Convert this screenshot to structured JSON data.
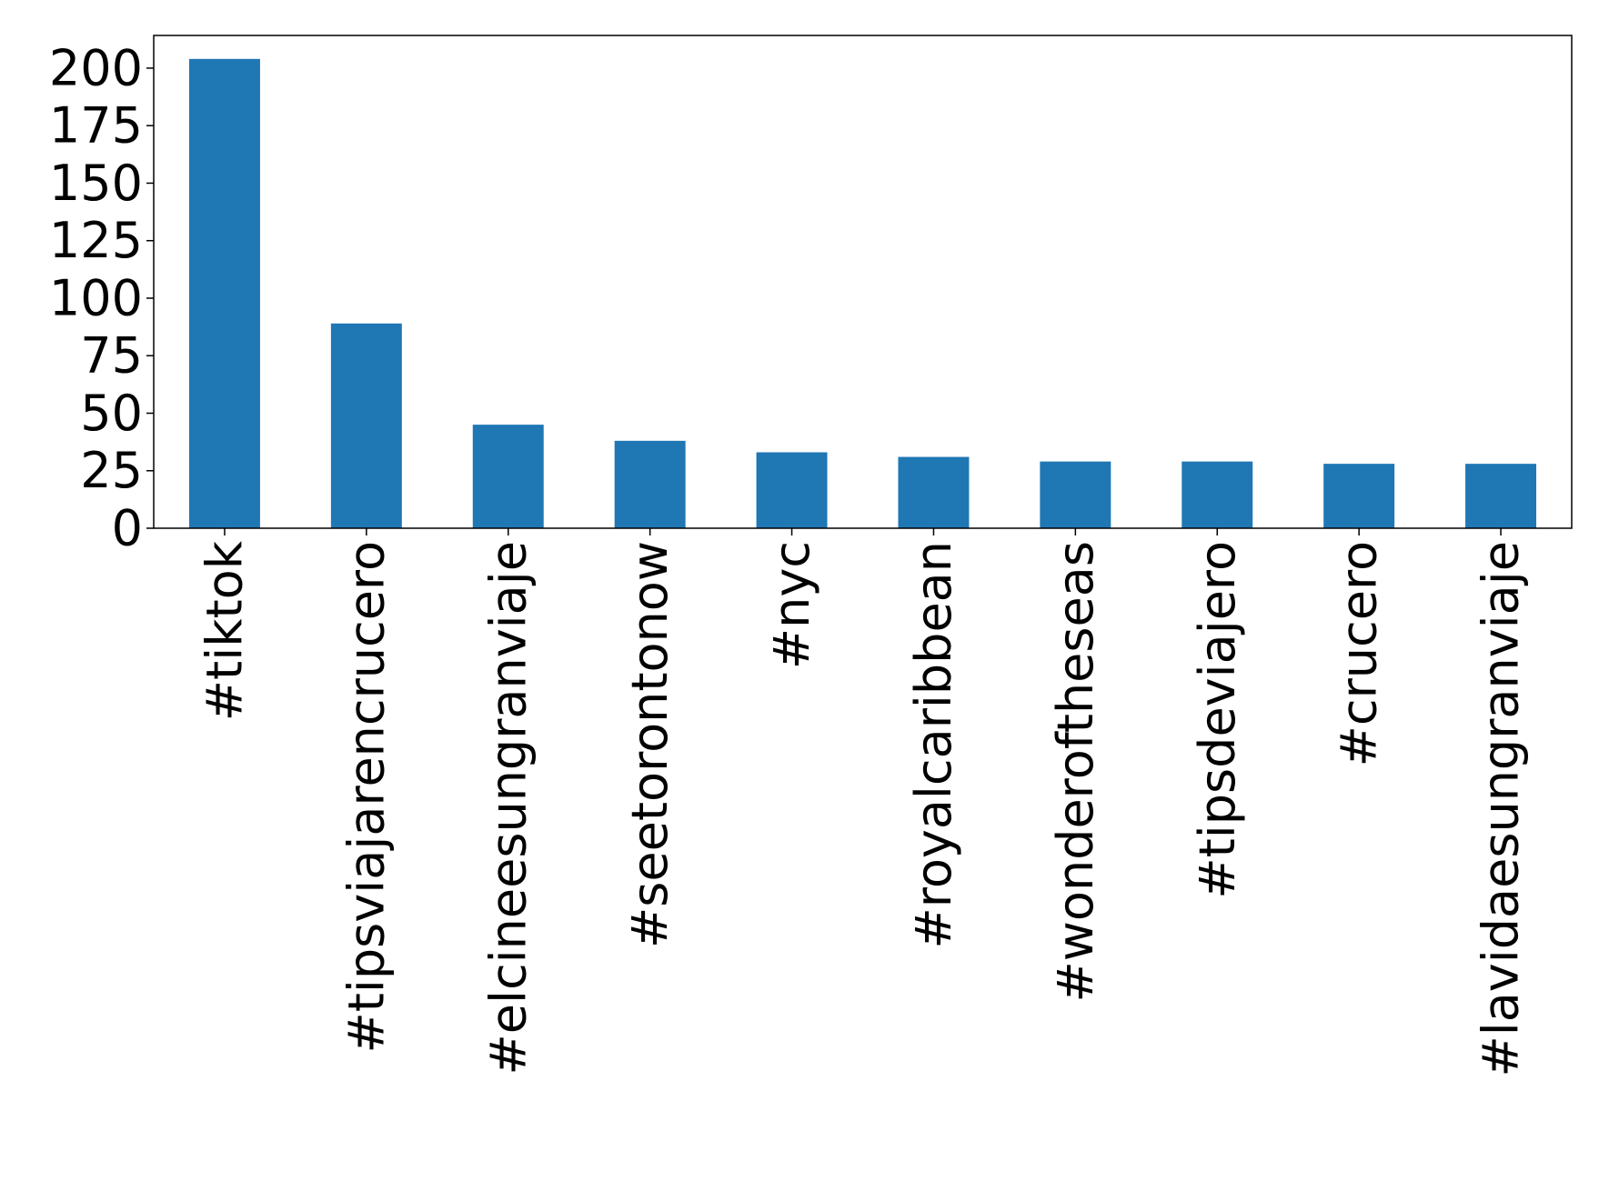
{
  "chart_data": {
    "type": "bar",
    "categories": [
      "#tiktok",
      "#tipsviajarencrucero",
      "#elcineesungranviaje",
      "#seetorontonow",
      "#nyc",
      "#royalcaribbean",
      "#wonderoftheseas",
      "#tipsdeviajero",
      "#crucero",
      "#lavidaesungranviaje"
    ],
    "values": [
      204,
      89,
      45,
      38,
      33,
      31,
      29,
      29,
      28,
      28
    ],
    "color": "#1f77b4",
    "ylim": [
      0,
      214.2
    ],
    "yticks": [
      0,
      25,
      50,
      75,
      100,
      125,
      150,
      175,
      200
    ],
    "grid": false
  }
}
